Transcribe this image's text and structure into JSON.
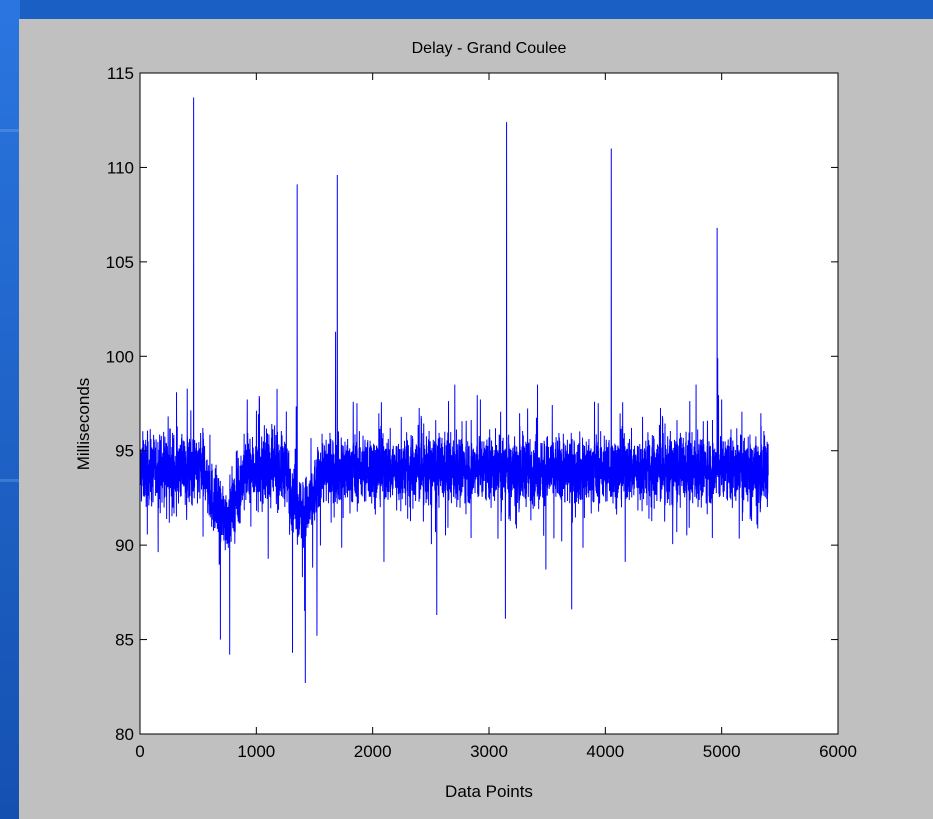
{
  "chart_data": {
    "type": "line",
    "title": "Delay - Grand Coulee",
    "xlabel": "Data Points",
    "ylabel": "Milliseconds",
    "xlim": [
      0,
      6000
    ],
    "ylim": [
      80,
      115
    ],
    "x_ticks": [
      0,
      1000,
      2000,
      3000,
      4000,
      5000,
      6000
    ],
    "y_ticks": [
      80,
      85,
      90,
      95,
      100,
      105,
      110,
      115
    ],
    "grid": false,
    "n_points": 5400,
    "baseline_ms": 94,
    "spikes": [
      {
        "x": 460,
        "y": 113.7
      },
      {
        "x": 1350,
        "y": 109.1
      },
      {
        "x": 1680,
        "y": 108.5
      },
      {
        "x": 1695,
        "y": 109.6
      },
      {
        "x": 3150,
        "y": 112.4
      },
      {
        "x": 4050,
        "y": 111.0
      },
      {
        "x": 4960,
        "y": 106.8
      },
      {
        "x": 1680,
        "y": 101.3
      },
      {
        "x": 4965,
        "y": 99.9
      }
    ],
    "dips": [
      {
        "x": 690,
        "y": 85.0
      },
      {
        "x": 770,
        "y": 84.2
      },
      {
        "x": 1310,
        "y": 84.3
      },
      {
        "x": 1420,
        "y": 82.7
      },
      {
        "x": 1520,
        "y": 85.2
      },
      {
        "x": 3140,
        "y": 86.1
      },
      {
        "x": 3710,
        "y": 86.6
      },
      {
        "x": 2550,
        "y": 86.3
      }
    ],
    "line_color": "#0000ff"
  }
}
